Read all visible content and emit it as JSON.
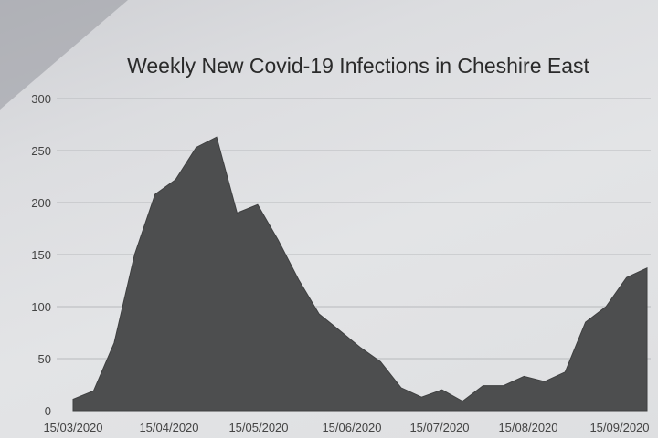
{
  "chart_data": {
    "type": "area",
    "title": "Weekly New Covid-19 Infections in Cheshire East",
    "xlabel": "",
    "ylabel": "",
    "ylim": [
      0,
      300
    ],
    "y_ticks": [
      0,
      50,
      100,
      150,
      200,
      250,
      300
    ],
    "x_tick_labels": [
      "15/03/2020",
      "15/04/2020",
      "15/05/2020",
      "15/06/2020",
      "15/07/2020",
      "15/08/2020",
      "15/09/2020"
    ],
    "grid": true,
    "legend": "none",
    "color": "#4d4e4f",
    "x": [
      "2020-03-08",
      "2020-03-15",
      "2020-03-22",
      "2020-03-29",
      "2020-04-05",
      "2020-04-12",
      "2020-04-19",
      "2020-04-26",
      "2020-05-03",
      "2020-05-10",
      "2020-05-17",
      "2020-05-24",
      "2020-05-31",
      "2020-06-07",
      "2020-06-14",
      "2020-06-21",
      "2020-06-28",
      "2020-07-05",
      "2020-07-12",
      "2020-07-19",
      "2020-07-26",
      "2020-08-02",
      "2020-08-09",
      "2020-08-16",
      "2020-08-23",
      "2020-08-30",
      "2020-09-06",
      "2020-09-13",
      "2020-09-20"
    ],
    "values": [
      11,
      19,
      65,
      150,
      208,
      222,
      253,
      263,
      190,
      198,
      164,
      126,
      93,
      77,
      61,
      47,
      22,
      13,
      20,
      9,
      24,
      24,
      33,
      28,
      37,
      85,
      100,
      128,
      137
    ]
  }
}
